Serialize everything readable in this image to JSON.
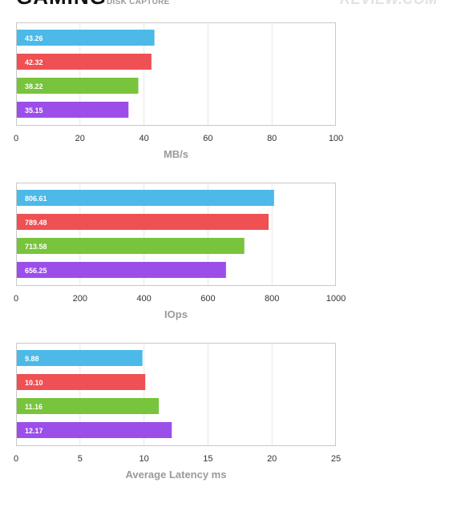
{
  "header": {
    "title": "GAMING",
    "subtitle": "DISK CAPTURE",
    "watermark": "REVIEW.COM"
  },
  "colors": {
    "series": [
      "#4cb9e8",
      "#ef5054",
      "#78c43c",
      "#9b4fe8"
    ],
    "grid": "#e6e6e6",
    "frame": "#c8c8c8",
    "tick_text": "#333333",
    "axis_label": "#9a9a9a"
  },
  "chart_data": [
    {
      "type": "bar",
      "orientation": "horizontal",
      "values": [
        43.26,
        42.32,
        38.22,
        35.15
      ],
      "value_labels": [
        "43.26",
        "42.32",
        "38.22",
        "35.15"
      ],
      "xlim": [
        0,
        100
      ],
      "xticks": [
        "0",
        "20",
        "40",
        "60",
        "80",
        "100"
      ],
      "xlabel": "MB/s",
      "grid": true
    },
    {
      "type": "bar",
      "orientation": "horizontal",
      "values": [
        806.61,
        789.48,
        713.58,
        656.25
      ],
      "value_labels": [
        "806.61",
        "789.48",
        "713.58",
        "656.25"
      ],
      "xlim": [
        0,
        1000
      ],
      "xticks": [
        "0",
        "200",
        "400",
        "600",
        "800",
        "1000"
      ],
      "xlabel": "IOps",
      "grid": true
    },
    {
      "type": "bar",
      "orientation": "horizontal",
      "values": [
        9.88,
        10.1,
        11.16,
        12.17
      ],
      "value_labels": [
        "9.88",
        "10.10",
        "11.16",
        "12.17"
      ],
      "xlim": [
        0,
        25
      ],
      "xticks": [
        "0",
        "5",
        "10",
        "15",
        "20",
        "25"
      ],
      "xlabel": "Average Latency ms",
      "grid": true
    }
  ]
}
